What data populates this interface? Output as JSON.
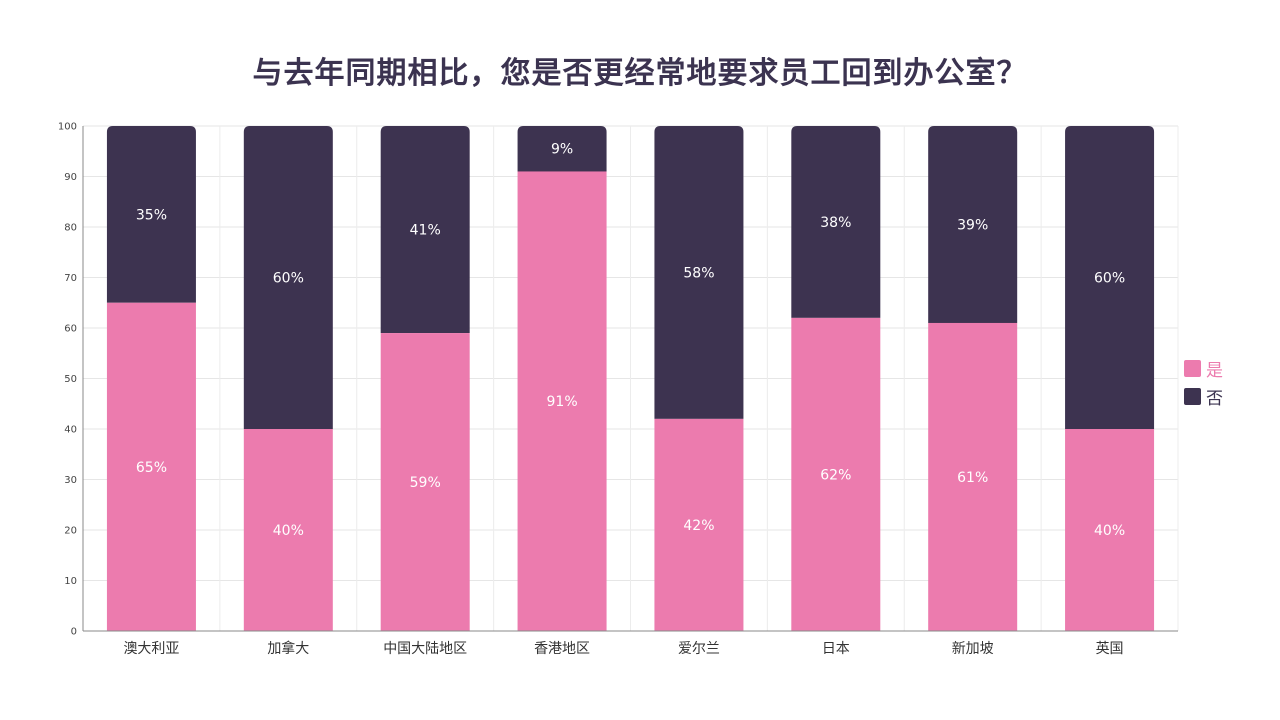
{
  "chart_data": {
    "type": "bar",
    "stacked": true,
    "title": "与去年同期相比，您是否更经常地要求员工回到办公室？",
    "categories": [
      "澳大利亚",
      "加拿大",
      "中国大陆地区",
      "香港地区",
      "爱尔兰",
      "日本",
      "新加坡",
      "英国"
    ],
    "series": [
      {
        "name": "是",
        "color": "#ec7bae",
        "values": [
          65,
          40,
          59,
          91,
          42,
          62,
          61,
          40
        ],
        "labels": [
          "65%",
          "40%",
          "59%",
          "91%",
          "42%",
          "62%",
          "61%",
          "40%"
        ]
      },
      {
        "name": "否",
        "color": "#3d3350",
        "values": [
          35,
          60,
          41,
          9,
          58,
          38,
          39,
          60
        ],
        "labels": [
          "35%",
          "60%",
          "41%",
          "9%",
          "58%",
          "38%",
          "39%",
          "60%"
        ]
      }
    ],
    "ylim": [
      0,
      100
    ],
    "yticks": [
      "0",
      "10",
      "20",
      "30",
      "40",
      "50",
      "60",
      "70",
      "80",
      "90",
      "100"
    ],
    "grid": true,
    "legend_position": "right"
  }
}
